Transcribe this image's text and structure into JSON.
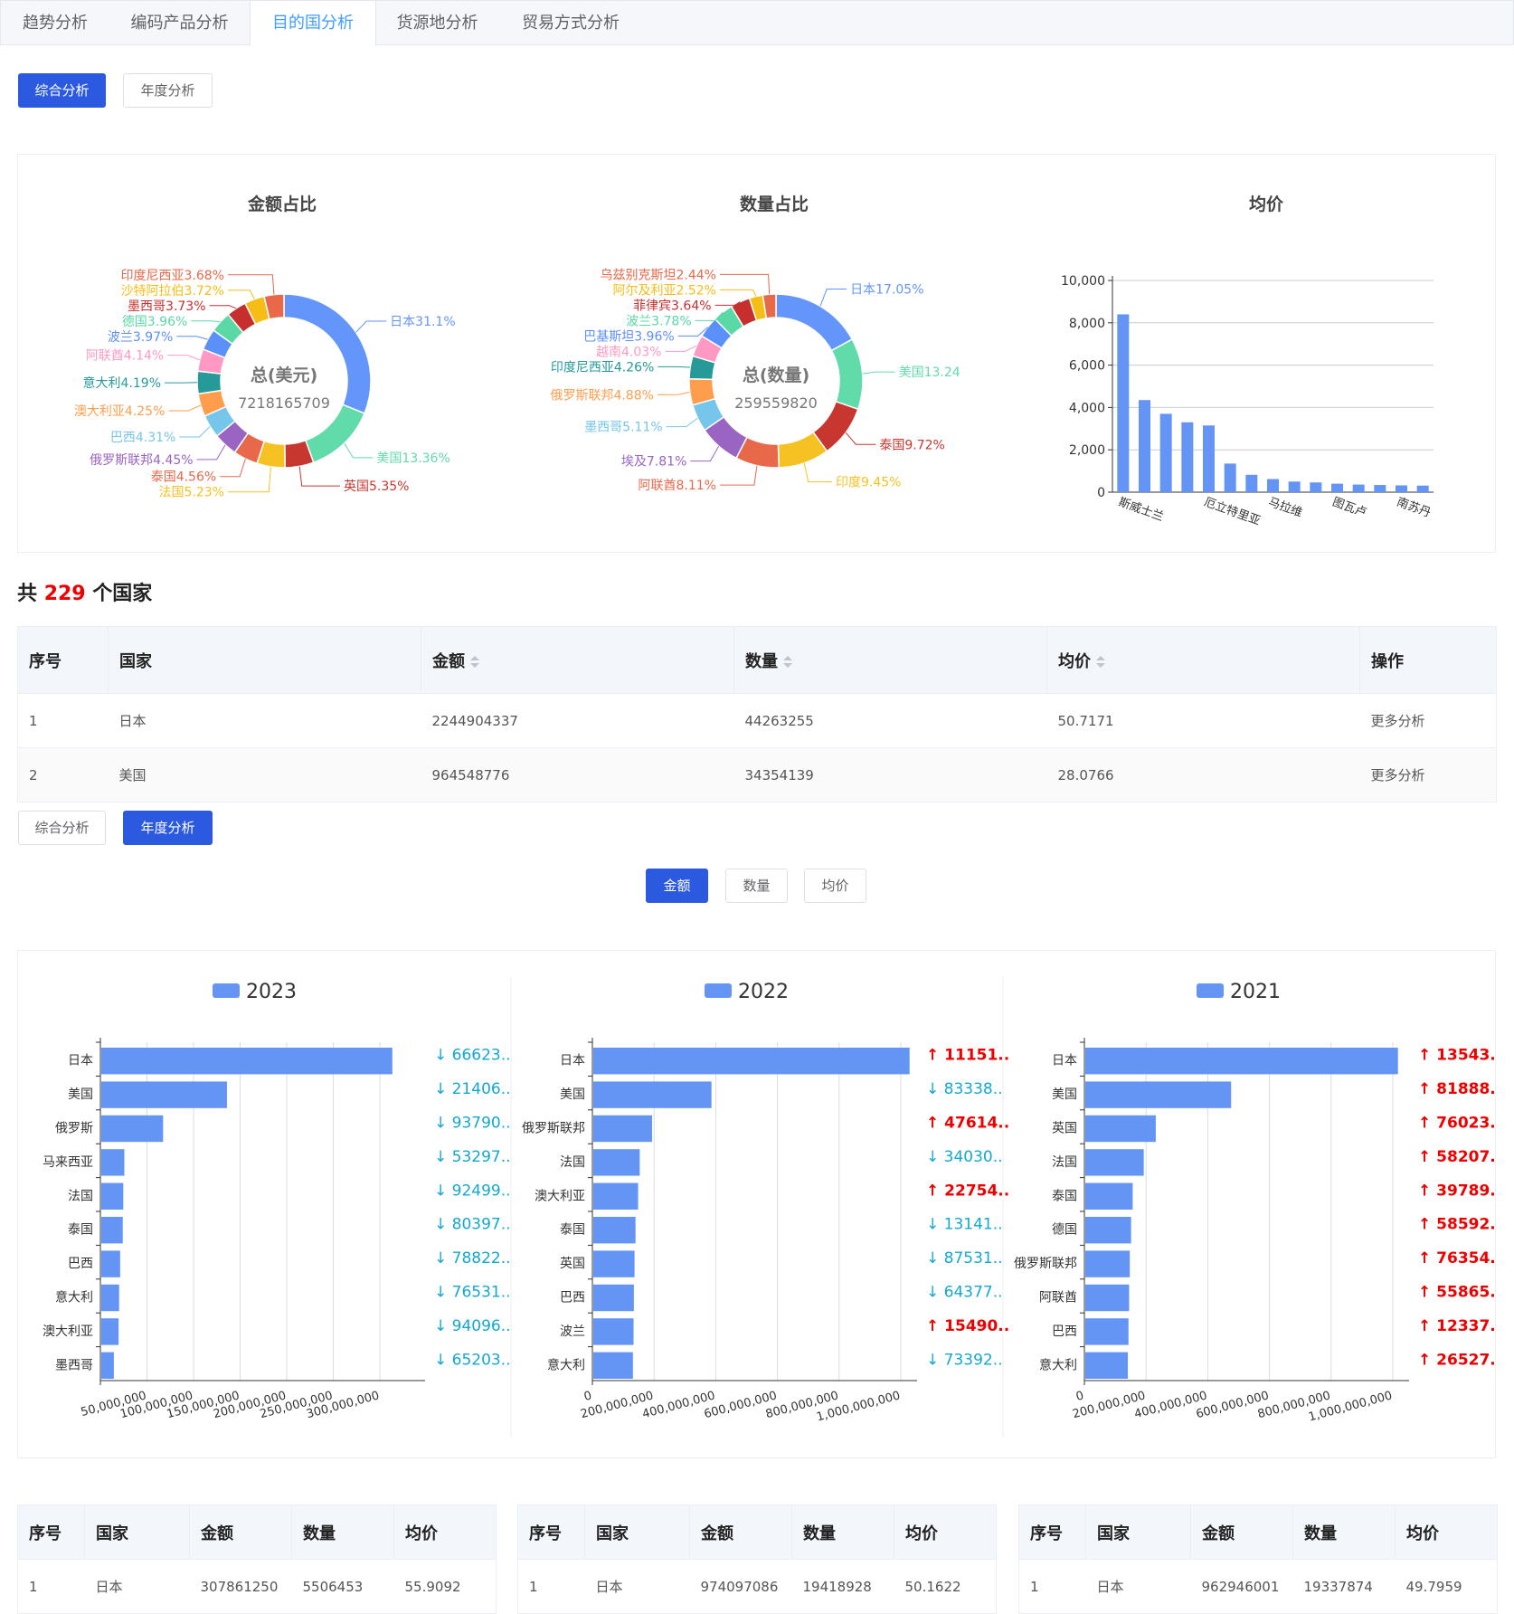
{
  "tabs": [
    "趋势分析",
    "编码产品分析",
    "目的国分析",
    "货源地分析",
    "贸易方式分析"
  ],
  "active_tab": 2,
  "view_buttons_top": {
    "summary": "综合分析",
    "yearly": "年度分析"
  },
  "view_buttons_mid": {
    "summary": "综合分析",
    "yearly": "年度分析"
  },
  "metric_buttons": {
    "amount": "金额",
    "quantity": "数量",
    "avg": "均价"
  },
  "country_count": {
    "prefix": "共",
    "count": "229",
    "suffix": "个国家"
  },
  "main_table": {
    "headers": [
      "序号",
      "国家",
      "金额",
      "数量",
      "均价",
      "操作"
    ],
    "rows": [
      {
        "idx": "1",
        "country": "日本",
        "amount": "2244904337",
        "qty": "44263255",
        "avg": "50.7171",
        "action": "更多分析"
      },
      {
        "idx": "2",
        "country": "美国",
        "amount": "964548776",
        "qty": "34354139",
        "avg": "28.0766",
        "action": "更多分析"
      }
    ]
  },
  "year_tables": [
    {
      "headers": [
        "序号",
        "国家",
        "金额",
        "数量",
        "均价"
      ],
      "rows": [
        [
          "1",
          "日本",
          "307861250",
          "5506453",
          "55.9092"
        ]
      ]
    },
    {
      "headers": [
        "序号",
        "国家",
        "金额",
        "数量",
        "均价"
      ],
      "rows": [
        [
          "1",
          "日本",
          "974097086",
          "19418928",
          "50.1622"
        ]
      ]
    },
    {
      "headers": [
        "序号",
        "国家",
        "金额",
        "数量",
        "均价"
      ],
      "rows": [
        [
          "1",
          "日本",
          "962946001",
          "19337874",
          "49.7959"
        ]
      ]
    }
  ],
  "colors": {
    "primary": "#2b59e0",
    "bar": "#6495f5",
    "up": "#ee0000",
    "down": "#13a8d0"
  },
  "chart_data": [
    {
      "type": "pie",
      "title": "金额占比",
      "center_label": "总(美元)",
      "center_value": "7218165709",
      "slices": [
        {
          "label": "日本31.1%",
          "value": 31.1,
          "color": "#6395fa"
        },
        {
          "label": "美国13.36%",
          "value": 13.36,
          "color": "#62dbab"
        },
        {
          "label": "英国5.35%",
          "value": 5.35,
          "color": "#c8372f"
        },
        {
          "label": "法国5.23%",
          "value": 5.23,
          "color": "#f6c123"
        },
        {
          "label": "泰国4.56%",
          "value": 4.56,
          "color": "#e8684a"
        },
        {
          "label": "俄罗斯联邦4.45%",
          "value": 4.45,
          "color": "#9a64c2"
        },
        {
          "label": "巴西4.31%",
          "value": 4.31,
          "color": "#75c6ea"
        },
        {
          "label": "澳大利亚4.25%",
          "value": 4.25,
          "color": "#ff9d4d"
        },
        {
          "label": "意大利4.19%",
          "value": 4.19,
          "color": "#269a99"
        },
        {
          "label": "阿联酋4.14%",
          "value": 4.14,
          "color": "#ff99c3"
        },
        {
          "label": "波兰3.97%",
          "value": 3.97,
          "color": "#5b8ff9"
        },
        {
          "label": "德国3.96%",
          "value": 3.96,
          "color": "#5ad8a6"
        },
        {
          "label": "墨西哥3.73%",
          "value": 3.73,
          "color": "#c72e2e"
        },
        {
          "label": "沙特阿拉伯3.72%",
          "value": 3.72,
          "color": "#f6bd16"
        },
        {
          "label": "印度尼西亚3.68%",
          "value": 3.68,
          "color": "#e8684a"
        }
      ]
    },
    {
      "type": "pie",
      "title": "数量占比",
      "center_label": "总(数量)",
      "center_value": "259559820",
      "slices": [
        {
          "label": "日本17.05%",
          "value": 17.05,
          "color": "#6395fa"
        },
        {
          "label": "美国13.24",
          "value": 13.24,
          "color": "#62dbab"
        },
        {
          "label": "泰国9.72%",
          "value": 9.72,
          "color": "#c8372f"
        },
        {
          "label": "印度9.45%",
          "value": 9.45,
          "color": "#f6c123"
        },
        {
          "label": "阿联酋8.11%",
          "value": 8.11,
          "color": "#e8684a"
        },
        {
          "label": "埃及7.81%",
          "value": 7.81,
          "color": "#9a64c2"
        },
        {
          "label": "墨西哥5.11%",
          "value": 5.11,
          "color": "#75c6ea"
        },
        {
          "label": "俄罗斯联邦4.88%",
          "value": 4.88,
          "color": "#ff9d4d"
        },
        {
          "label": "印度尼西亚4.26%",
          "value": 4.26,
          "color": "#269a99"
        },
        {
          "label": "越南4.03%",
          "value": 4.03,
          "color": "#ff99c3"
        },
        {
          "label": "巴基斯坦3.96%",
          "value": 3.96,
          "color": "#5b8ff9"
        },
        {
          "label": "波兰3.78%",
          "value": 3.78,
          "color": "#5ad8a6"
        },
        {
          "label": "菲律宾3.64%",
          "value": 3.64,
          "color": "#c72e2e"
        },
        {
          "label": "阿尔及利亚2.52%",
          "value": 2.52,
          "color": "#f6bd16"
        },
        {
          "label": "乌兹别克斯坦2.44%",
          "value": 2.44,
          "color": "#e8684a"
        }
      ]
    },
    {
      "type": "bar",
      "title": "均价",
      "categories": [
        "斯威士兰",
        "",
        "",
        "",
        "厄立特里亚",
        "",
        "",
        "马拉维",
        "",
        "",
        "图瓦卢",
        "",
        "",
        "南苏丹",
        ""
      ],
      "values": [
        8400,
        4350,
        3700,
        3300,
        3150,
        1350,
        820,
        620,
        500,
        460,
        400,
        360,
        340,
        320,
        310
      ],
      "ylim": [
        0,
        10000
      ],
      "yticks": [
        "0",
        "2,000",
        "4,000",
        "6,000",
        "8,000",
        "10,000"
      ]
    },
    {
      "type": "bar",
      "orientation": "horizontal",
      "legend": "2023",
      "categories": [
        "日本",
        "美国",
        "俄罗斯",
        "马来西亚",
        "法国",
        "泰国",
        "巴西",
        "意大利",
        "澳大利亚",
        "墨西哥"
      ],
      "values": [
        307861250,
        150000000,
        89000000,
        52000000,
        51000000,
        50500000,
        48000000,
        47000000,
        46500000,
        42000000
      ],
      "xlim": [
        30000000,
        340000000
      ],
      "xticks": [
        "50,000,000",
        "100,000,000",
        "150,000,000",
        "200,000,000",
        "250,000,000",
        "300,000,000"
      ],
      "changes": [
        {
          "dir": "down",
          "text": "66623.."
        },
        {
          "dir": "down",
          "text": "21406.."
        },
        {
          "dir": "down",
          "text": "93790.."
        },
        {
          "dir": "down",
          "text": "53297.."
        },
        {
          "dir": "down",
          "text": "92499.."
        },
        {
          "dir": "down",
          "text": "80397.."
        },
        {
          "dir": "down",
          "text": "78822.."
        },
        {
          "dir": "down",
          "text": "76531.."
        },
        {
          "dir": "down",
          "text": "94096.."
        },
        {
          "dir": "down",
          "text": "65203.."
        }
      ]
    },
    {
      "type": "bar",
      "orientation": "horizontal",
      "legend": "2022",
      "categories": [
        "日本",
        "美国",
        "俄罗斯联邦",
        "法国",
        "澳大利亚",
        "泰国",
        "英国",
        "巴西",
        "波兰",
        "意大利"
      ],
      "values": [
        974097086,
        364000000,
        181000000,
        143000000,
        138000000,
        130000000,
        127000000,
        125000000,
        124000000,
        122000000
      ],
      "xlim": [
        0,
        1000000000
      ],
      "xticks": [
        "0",
        "200,000,000",
        "400,000,000",
        "600,000,000",
        "800,000,000",
        "1,000,000,000"
      ],
      "changes": [
        {
          "dir": "up",
          "text": "11151.."
        },
        {
          "dir": "down",
          "text": "83338.."
        },
        {
          "dir": "up",
          "text": "47614.."
        },
        {
          "dir": "down",
          "text": "34030.."
        },
        {
          "dir": "up",
          "text": "22754.."
        },
        {
          "dir": "down",
          "text": "13141.."
        },
        {
          "dir": "down",
          "text": "87531.."
        },
        {
          "dir": "down",
          "text": "64377.."
        },
        {
          "dir": "up",
          "text": "15490.."
        },
        {
          "dir": "down",
          "text": "73392.."
        }
      ]
    },
    {
      "type": "bar",
      "orientation": "horizontal",
      "legend": "2021",
      "categories": [
        "日本",
        "美国",
        "英国",
        "法国",
        "泰国",
        "德国",
        "俄罗斯联邦",
        "阿联酋",
        "巴西",
        "意大利"
      ],
      "values": [
        962946001,
        449000000,
        217000000,
        180000000,
        146000000,
        141000000,
        137000000,
        135000000,
        133000000,
        131000000
      ],
      "xlim": [
        0,
        1000000000
      ],
      "xticks": [
        "0",
        "200,000,000",
        "400,000,000",
        "600,000,000",
        "800,000,000",
        "1,000,000,000"
      ],
      "changes": [
        {
          "dir": "up",
          "text": "13543.."
        },
        {
          "dir": "up",
          "text": "81888.."
        },
        {
          "dir": "up",
          "text": "76023.."
        },
        {
          "dir": "up",
          "text": "58207.."
        },
        {
          "dir": "up",
          "text": "39789.."
        },
        {
          "dir": "up",
          "text": "58592.."
        },
        {
          "dir": "up",
          "text": "76354.."
        },
        {
          "dir": "up",
          "text": "55865.."
        },
        {
          "dir": "up",
          "text": "12337.."
        },
        {
          "dir": "up",
          "text": "26527.."
        }
      ]
    }
  ]
}
